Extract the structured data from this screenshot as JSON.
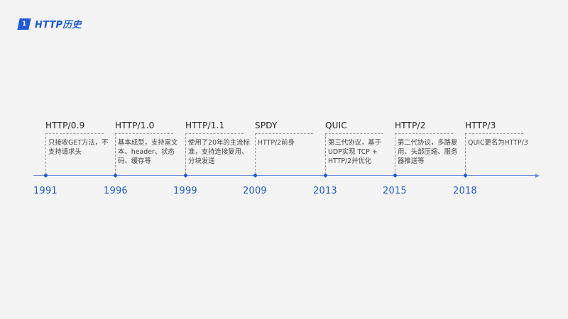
{
  "header": {
    "index": "1",
    "title": "HTTP历史"
  },
  "timeline": [
    {
      "name": "HTTP/0.9",
      "desc": "只接收GET方法，不支持请求头",
      "year": "1991"
    },
    {
      "name": "HTTP/1.0",
      "desc": "基本成型，支持富文本、header、状态码、缓存等",
      "year": "1996"
    },
    {
      "name": "HTTP/1.1",
      "desc": "使用了20年的主流标准，支持连接复用、分块发送",
      "year": "1999"
    },
    {
      "name": "SPDY",
      "desc": "HTTP/2前身",
      "year": "2009"
    },
    {
      "name": "QUIC",
      "desc": "第三代协议，基于UDP实现 TCP + HTTP/2并优化",
      "year": "2013"
    },
    {
      "name": "HTTP/2",
      "desc": "第二代协议，多路复用、头部压缩、服务器推送等",
      "year": "2015"
    },
    {
      "name": "HTTP/3",
      "desc": "QUIC更名为HTTP/3",
      "year": "2018"
    }
  ],
  "colors": {
    "accent": "#1f5bd6",
    "axis": "#6f8fe0",
    "background": "#f4f4f5"
  }
}
